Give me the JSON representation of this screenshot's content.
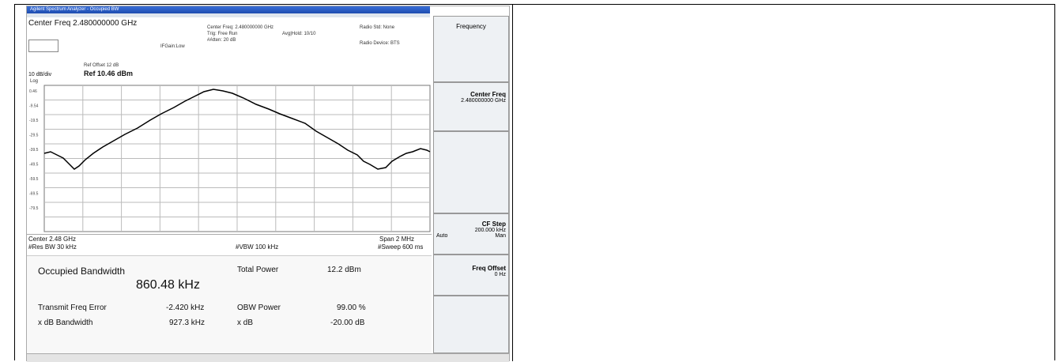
{
  "window": {
    "title": "Agilent Spectrum Analyzer - Occupied BW"
  },
  "header": {
    "center_freq": "Center Freq 2.480000000 GHz",
    "ifgain": "IFGain:Low",
    "center_freq_small": "Center Freq: 2.480000000 GHz",
    "trig": "Trig: Free Run",
    "atten": "#Atten: 20 dB",
    "avg_hold": "Avg|Hold: 10/10",
    "radio_std": "Radio Std: None",
    "radio_device": "Radio Device: BTS",
    "ref_offset": "Ref Offset 12 dB",
    "scale": "10 dB/div",
    "ref_level": "Ref 10.46 dBm",
    "log": "Log"
  },
  "graph": {
    "y_labels": [
      "0.46",
      "-9.54",
      "-19.5",
      "-29.5",
      "-39.5",
      "-49.5",
      "-59.5",
      "-69.5",
      "-79.5"
    ]
  },
  "footer": {
    "center": "Center 2.48 GHz",
    "res_bw": "#Res BW 30 kHz",
    "vbw": "#VBW 100 kHz",
    "span": "Span 2 MHz",
    "sweep": "#Sweep 600 ms"
  },
  "measurement": {
    "title": "Occupied Bandwidth",
    "obw": "860.48 kHz",
    "rows": [
      [
        "Total Power",
        "12.2 dBm"
      ],
      [
        "Transmit Freq Error",
        "-2.420 kHz",
        "OBW Power",
        "99.00 %"
      ],
      [
        "x dB Bandwidth",
        "927.3 kHz",
        "x dB",
        "-20.00 dB"
      ]
    ]
  },
  "softkeys": {
    "menu": "Frequency",
    "center_freq": "Center Freq",
    "center_freq_value": "2.480000000 GHz",
    "cf_step": "CF Step",
    "cf_step_value": "200.000 kHz",
    "auto": "Auto",
    "man": "Man",
    "freq_offset": "Freq Offset",
    "freq_offset_value": "0 Hz"
  }
}
